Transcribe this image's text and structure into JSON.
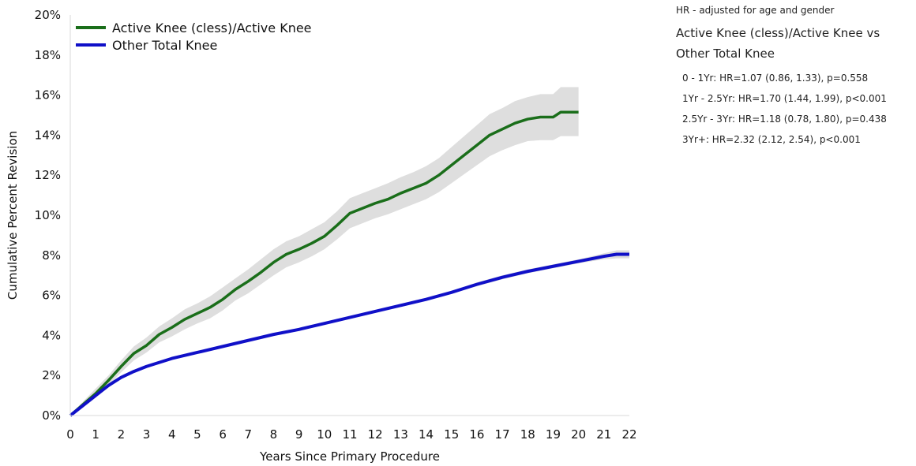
{
  "hr_panel": {
    "note": "HR - adjusted for age and gender",
    "title_line1": "Active Knee (cless)/Active Knee vs",
    "title_line2": "Other Total Knee",
    "lines": [
      "0 - 1Yr: HR=1.07 (0.86, 1.33), p=0.558",
      "1Yr - 2.5Yr: HR=1.70 (1.44, 1.99), p<0.001",
      "2.5Yr - 3Yr: HR=1.18 (0.78, 1.80), p=0.438",
      "3Yr+: HR=2.32 (2.12, 2.54), p<0.001"
    ]
  },
  "chart_data": {
    "type": "line",
    "title": "",
    "xlabel": "Years Since Primary Procedure",
    "ylabel": "Cumulative Percent Revision",
    "xlim": [
      0,
      22
    ],
    "ylim": [
      0,
      20
    ],
    "x_ticks": [
      "0",
      "1",
      "2",
      "3",
      "4",
      "5",
      "6",
      "7",
      "8",
      "9",
      "10",
      "11",
      "12",
      "13",
      "14",
      "15",
      "16",
      "17",
      "18",
      "19",
      "20",
      "21",
      "22"
    ],
    "y_ticks": [
      "0%",
      "2%",
      "4%",
      "6%",
      "8%",
      "10%",
      "12%",
      "14%",
      "16%",
      "18%",
      "20%"
    ],
    "y_tick_values": [
      0,
      2,
      4,
      6,
      8,
      10,
      12,
      14,
      16,
      18,
      20
    ],
    "grid": false,
    "legend_position": "top-left",
    "series": [
      {
        "name": "Active Knee (cless)/Active Knee",
        "color": "#1a6e1a",
        "band_color": "#dedede",
        "x": [
          0,
          0.5,
          1,
          1.5,
          2,
          2.5,
          3,
          3.5,
          4,
          4.5,
          5,
          5.5,
          6,
          6.5,
          7,
          7.5,
          8,
          8.5,
          9,
          9.5,
          10,
          10.5,
          11,
          11.5,
          12,
          12.5,
          13,
          13.5,
          14,
          14.5,
          15,
          15.5,
          16,
          16.5,
          17,
          17.5,
          18,
          18.5,
          19,
          19.3,
          20
        ],
        "y": [
          0,
          0.55,
          1.1,
          1.75,
          2.45,
          3.1,
          3.5,
          4.05,
          4.4,
          4.8,
          5.1,
          5.4,
          5.8,
          6.3,
          6.7,
          7.15,
          7.65,
          8.05,
          8.3,
          8.6,
          8.95,
          9.5,
          10.1,
          10.35,
          10.6,
          10.8,
          11.1,
          11.35,
          11.6,
          12.0,
          12.5,
          13.0,
          13.5,
          14.0,
          14.3,
          14.6,
          14.8,
          14.9,
          14.9,
          15.15,
          15.15
        ],
        "lower": [
          0,
          0.4,
          0.9,
          1.5,
          2.15,
          2.75,
          3.15,
          3.65,
          3.95,
          4.3,
          4.6,
          4.85,
          5.25,
          5.75,
          6.1,
          6.55,
          7.0,
          7.4,
          7.65,
          7.95,
          8.3,
          8.8,
          9.35,
          9.6,
          9.85,
          10.05,
          10.3,
          10.55,
          10.8,
          11.15,
          11.6,
          12.05,
          12.5,
          12.95,
          13.25,
          13.5,
          13.7,
          13.75,
          13.75,
          13.95,
          13.95
        ],
        "upper": [
          0,
          0.7,
          1.35,
          2.0,
          2.75,
          3.45,
          3.9,
          4.45,
          4.85,
          5.3,
          5.6,
          5.95,
          6.4,
          6.85,
          7.3,
          7.8,
          8.3,
          8.7,
          8.95,
          9.3,
          9.65,
          10.2,
          10.85,
          11.1,
          11.35,
          11.6,
          11.9,
          12.15,
          12.45,
          12.85,
          13.4,
          13.95,
          14.5,
          15.05,
          15.35,
          15.7,
          15.9,
          16.05,
          16.05,
          16.4,
          16.4
        ]
      },
      {
        "name": "Other Total Knee",
        "color": "#1010c8",
        "band_color": "#dedede",
        "x": [
          0,
          0.5,
          1,
          1.5,
          2,
          2.5,
          3,
          4,
          5,
          6,
          7,
          8,
          9,
          10,
          11,
          12,
          13,
          14,
          15,
          16,
          17,
          18,
          19,
          20,
          21,
          21.5,
          22
        ],
        "y": [
          0,
          0.5,
          1.0,
          1.5,
          1.9,
          2.2,
          2.45,
          2.85,
          3.15,
          3.45,
          3.75,
          4.05,
          4.3,
          4.6,
          4.9,
          5.2,
          5.5,
          5.8,
          6.15,
          6.55,
          6.9,
          7.2,
          7.45,
          7.7,
          7.95,
          8.05,
          8.05
        ],
        "lower": [
          0,
          0.47,
          0.96,
          1.45,
          1.85,
          2.15,
          2.4,
          2.8,
          3.1,
          3.4,
          3.7,
          4.0,
          4.25,
          4.55,
          4.85,
          5.15,
          5.45,
          5.75,
          6.1,
          6.45,
          6.8,
          7.1,
          7.35,
          7.6,
          7.8,
          7.85,
          7.85
        ],
        "upper": [
          0,
          0.53,
          1.04,
          1.55,
          1.95,
          2.25,
          2.5,
          2.9,
          3.2,
          3.5,
          3.8,
          4.1,
          4.35,
          4.65,
          4.95,
          5.25,
          5.55,
          5.85,
          6.2,
          6.65,
          7.0,
          7.3,
          7.55,
          7.8,
          8.1,
          8.25,
          8.25
        ]
      }
    ]
  }
}
